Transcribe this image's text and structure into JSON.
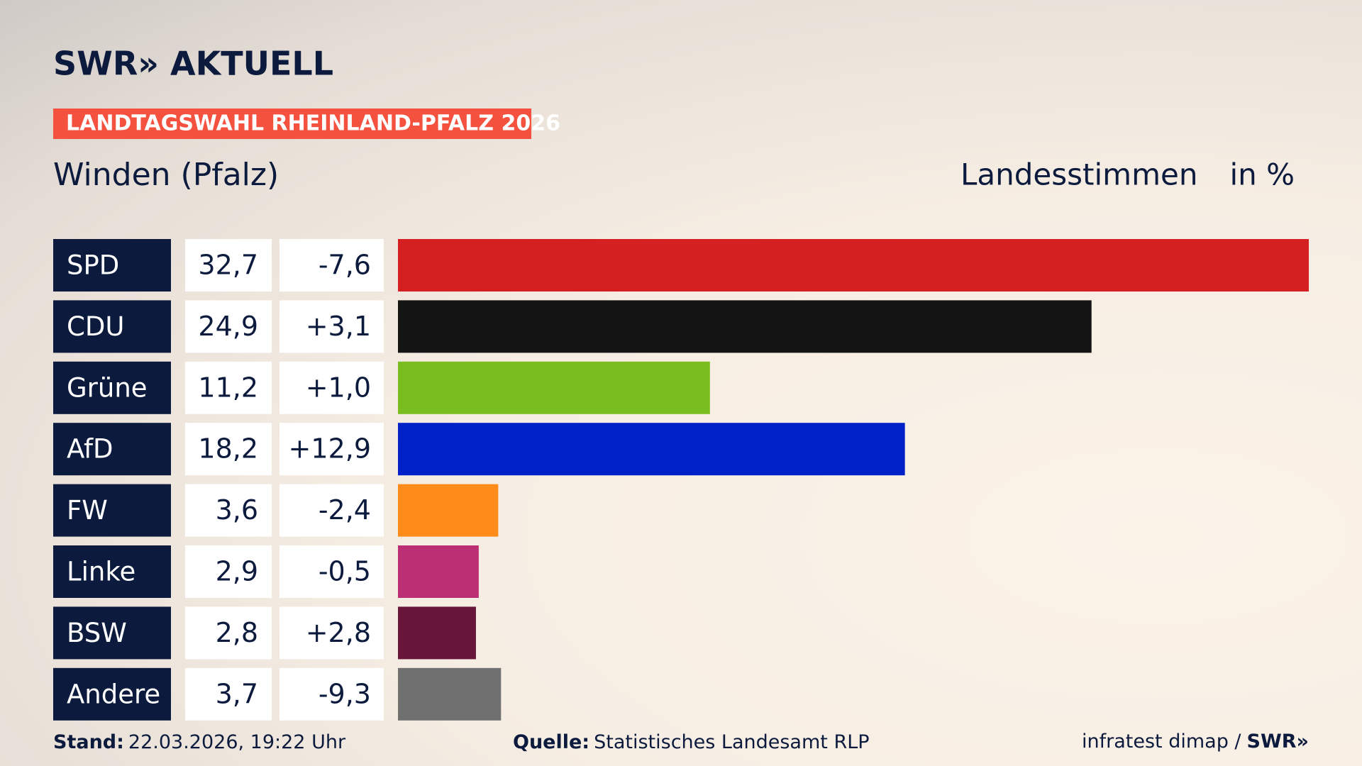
{
  "chart_data": {
    "type": "bar",
    "brand": "SWR» AKTUELL",
    "banner": "LANDTAGSWAHL RHEINLAND-PFALZ 2026",
    "title": "Winden (Pfalz)",
    "measure": "Landesstimmen",
    "unit": "in %",
    "categories": [
      "SPD",
      "CDU",
      "Grüne",
      "AfD",
      "FW",
      "Linke",
      "BSW",
      "Andere"
    ],
    "values": [
      32.7,
      24.9,
      11.2,
      18.2,
      3.6,
      2.9,
      2.8,
      3.7
    ],
    "value_labels": [
      "32,7",
      "24,9",
      "11,2",
      "18,2",
      "3,6",
      "2,9",
      "2,8",
      "3,7"
    ],
    "changes": [
      -7.6,
      3.1,
      1.0,
      12.9,
      -2.4,
      -0.5,
      2.8,
      -9.3
    ],
    "change_labels": [
      "-7,6",
      "+3,1",
      "+1,0",
      "+12,9",
      "-2,4",
      "-0,5",
      "+2,8",
      "-9,3"
    ],
    "colors": [
      "#d42020",
      "#141414",
      "#7abd1e",
      "#0021c8",
      "#ff8c1a",
      "#bd2f75",
      "#67163a",
      "#707070"
    ],
    "footer": {
      "stand_label": "Stand:",
      "stand": "22.03.2026, 19:22 Uhr",
      "source_label": "Quelle:",
      "source": "Statistisches Landesamt RLP",
      "credit": "infratest dimap /",
      "credit_brand": "SWR»"
    }
  }
}
